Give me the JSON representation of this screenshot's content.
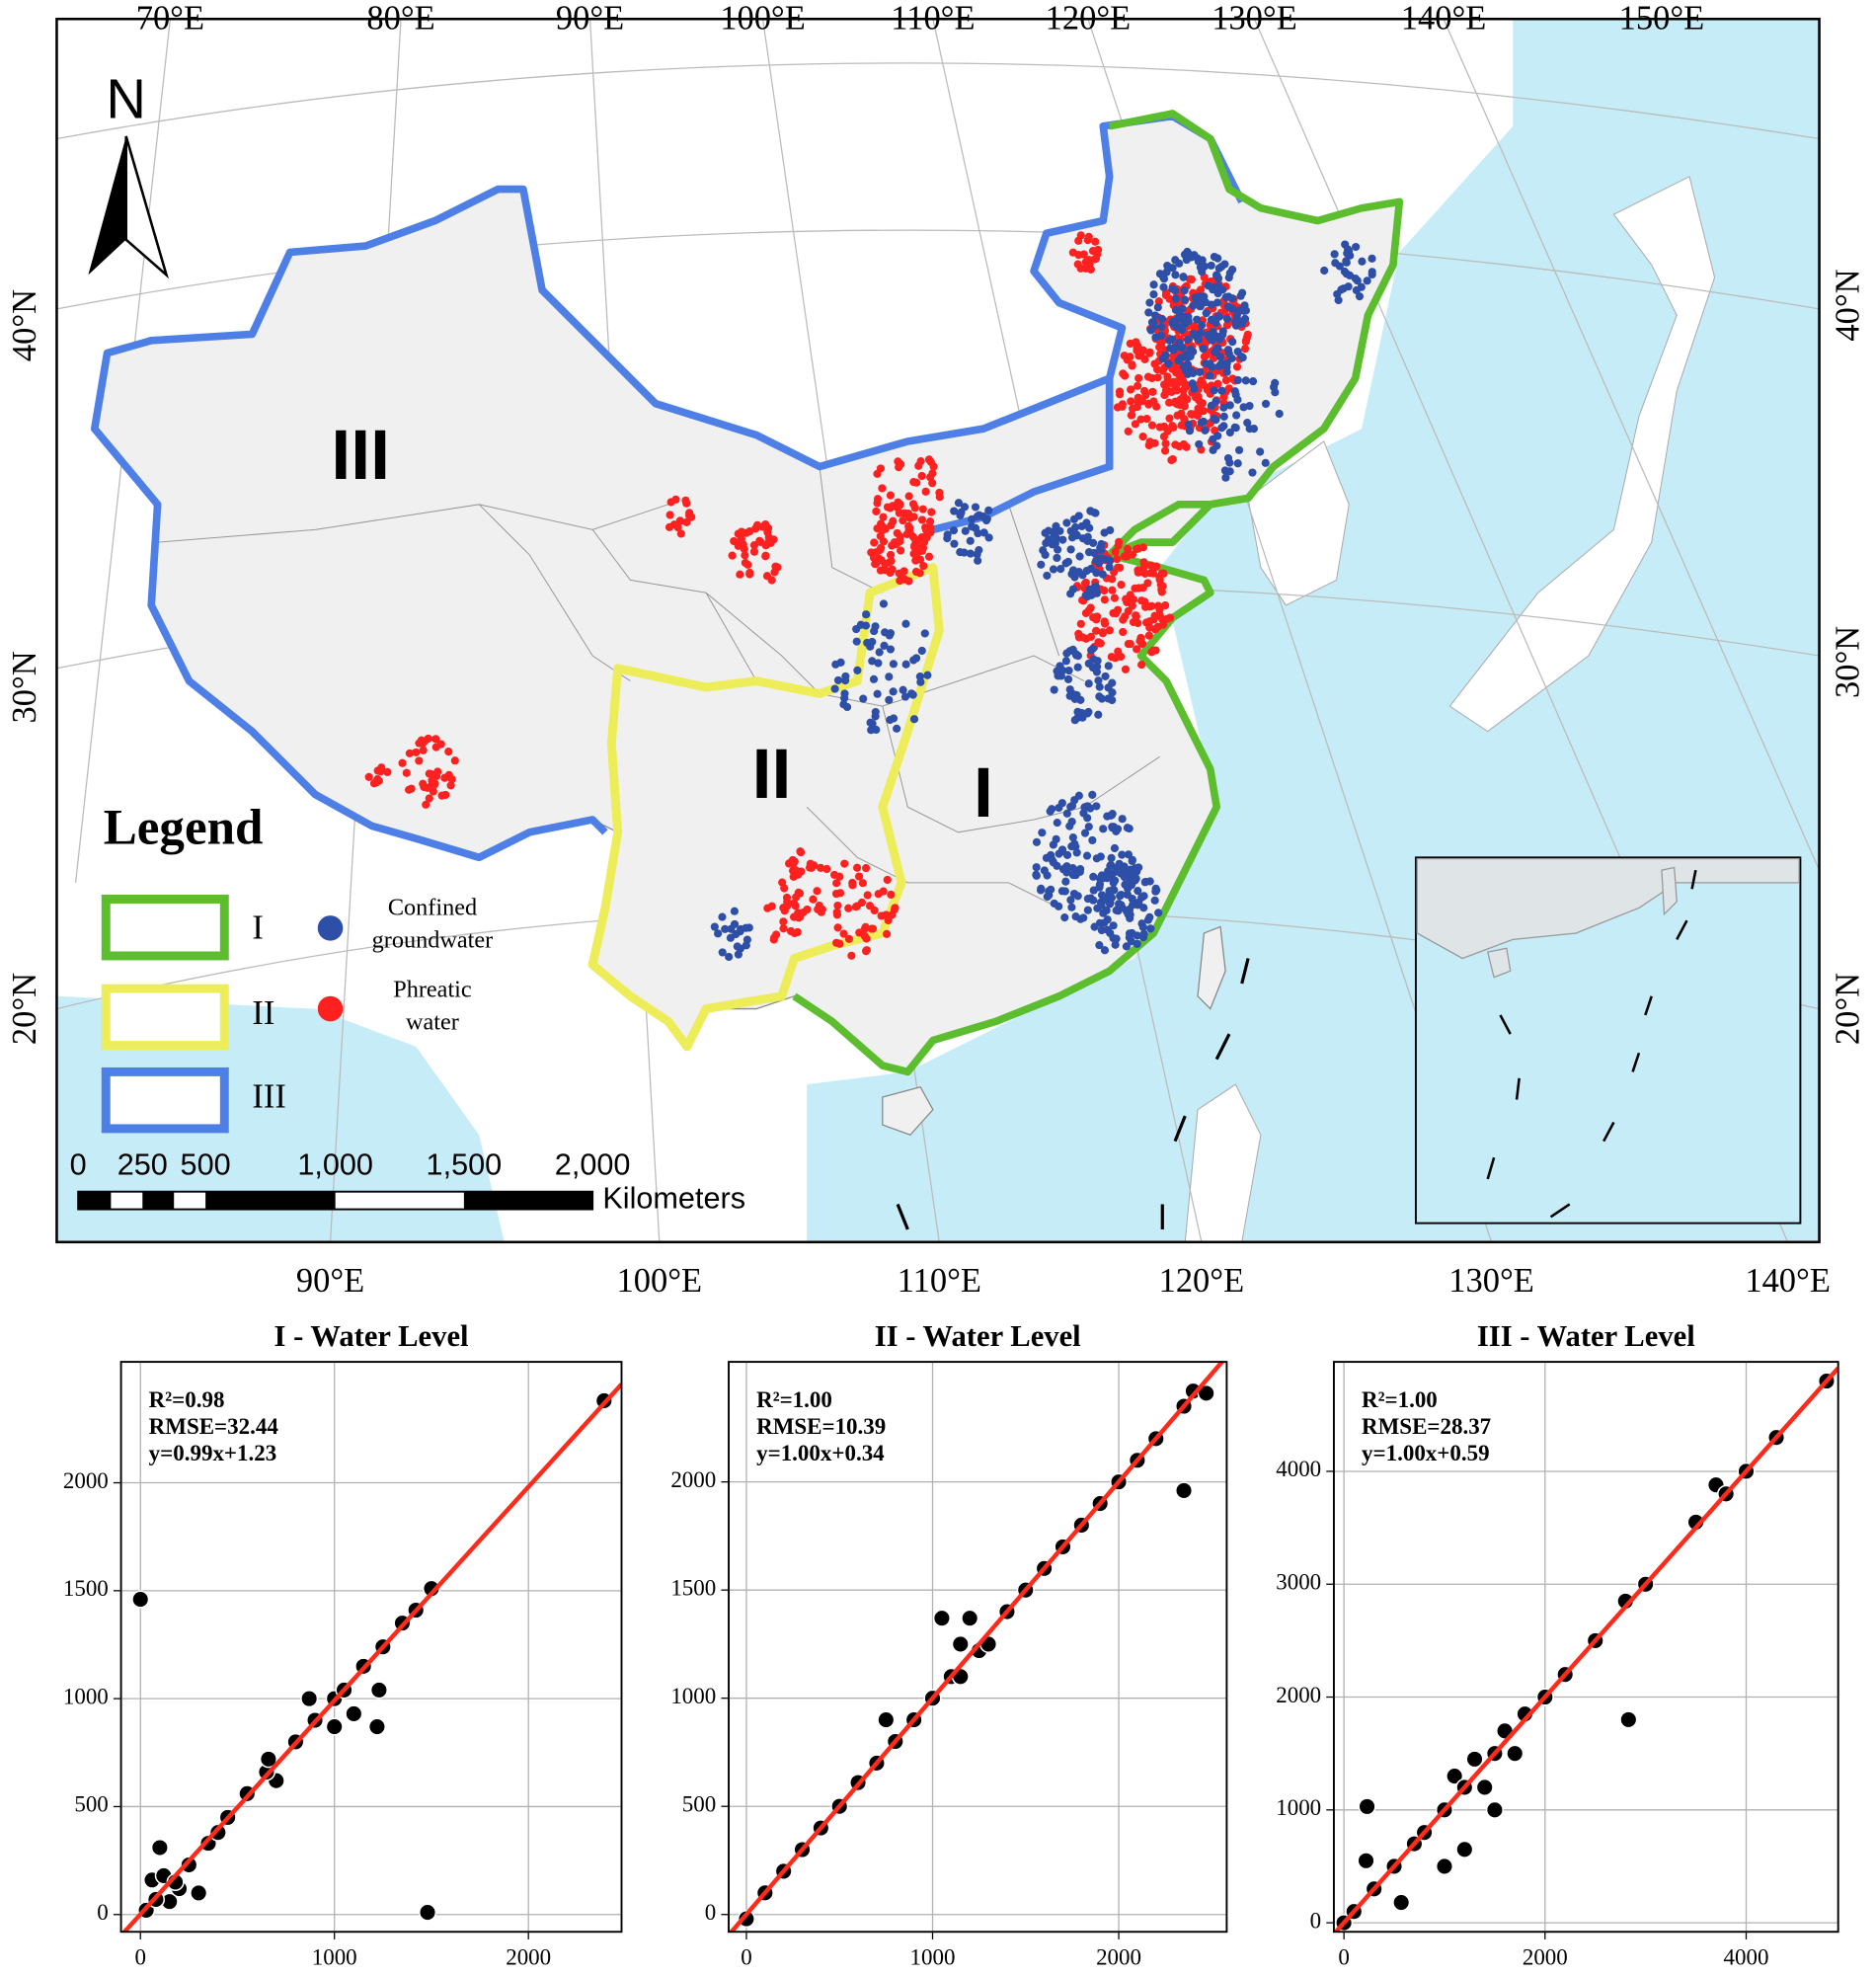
{
  "map": {
    "longitude_labels_top": [
      "70°E",
      "80°E",
      "90°E",
      "100°E",
      "110°E",
      "120°E",
      "130°E",
      "140°E",
      "150°E"
    ],
    "longitude_labels_bottom": [
      "90°E",
      "100°E",
      "110°E",
      "120°E",
      "130°E",
      "140°E"
    ],
    "latitude_labels_left": [
      "40°N",
      "30°N",
      "20°N"
    ],
    "latitude_labels_right": [
      "40°N",
      "30°N",
      "20°N"
    ],
    "north": "N",
    "region_labels": [
      "III",
      "II",
      "I"
    ],
    "legend": {
      "title": "Legend",
      "regions": [
        "I",
        "II",
        "III"
      ],
      "points": [
        [
          "Confined",
          "groundwater"
        ],
        [
          "Phreatic",
          "water"
        ]
      ]
    },
    "scale_bar": {
      "labels": [
        "0",
        "250",
        "500",
        "1,000",
        "1,500",
        "2,000"
      ],
      "unit": "Kilometers"
    }
  },
  "chart_data": [
    {
      "type": "scatter",
      "title": "I - Water Level",
      "annotations": [
        "R²=0.98",
        "RMSE=32.44",
        "y=0.99x+1.23"
      ],
      "x": [
        0,
        1480,
        2390,
        1500,
        1230,
        1220,
        1100,
        1000,
        870,
        700,
        300,
        100,
        60,
        150,
        200,
        250,
        350,
        450,
        550,
        650,
        660,
        800,
        900,
        1000,
        1050,
        1150,
        1250,
        1350,
        1420,
        30,
        80,
        120,
        180,
        400
      ],
      "values": [
        1460,
        10,
        2380,
        1510,
        1040,
        870,
        930,
        870,
        1000,
        620,
        100,
        310,
        160,
        60,
        120,
        230,
        330,
        450,
        560,
        660,
        720,
        800,
        900,
        1000,
        1040,
        1150,
        1240,
        1350,
        1410,
        20,
        70,
        180,
        150,
        380
      ],
      "color": "#000000",
      "fit": {
        "slope": 0.99,
        "intercept": 1.23,
        "color": "#ff2a1a"
      },
      "xlim": [
        -100,
        2480
      ],
      "ylim": [
        -80,
        2560
      ],
      "xticks": [
        0,
        1000,
        2000
      ],
      "yticks": [
        0,
        500,
        1000,
        1500,
        2000
      ],
      "grid": true
    },
    {
      "type": "scatter",
      "title": "II - Water Level",
      "annotations": [
        "R²=1.00",
        "RMSE=10.39",
        "y=1.00x+0.34"
      ],
      "x": [
        0,
        100,
        200,
        300,
        400,
        500,
        600,
        700,
        750,
        800,
        900,
        1000,
        1050,
        1100,
        1150,
        1200,
        1250,
        1300,
        1150,
        1400,
        1500,
        1600,
        1700,
        1800,
        1900,
        2000,
        2100,
        2200,
        2350,
        2350,
        2400,
        2470
      ],
      "values": [
        -20,
        100,
        200,
        300,
        400,
        500,
        610,
        700,
        900,
        800,
        900,
        1000,
        1370,
        1100,
        1250,
        1370,
        1220,
        1250,
        1100,
        1400,
        1500,
        1600,
        1700,
        1800,
        1900,
        2000,
        2100,
        2200,
        1960,
        2350,
        2420,
        2410
      ],
      "color": "#000000",
      "fit": {
        "slope": 1.0,
        "intercept": 0.34,
        "color": "#ff2a1a"
      },
      "xlim": [
        -95,
        2580
      ],
      "ylim": [
        -80,
        2555
      ],
      "xticks": [
        0,
        1000,
        2000
      ],
      "yticks": [
        0,
        500,
        1000,
        1500,
        2000
      ],
      "grid": true
    },
    {
      "type": "scatter",
      "title": "III - Water Level",
      "annotations": [
        "R²=1.00",
        "RMSE=28.37",
        "y=1.00x+0.59"
      ],
      "x": [
        0,
        100,
        230,
        220,
        300,
        570,
        500,
        700,
        800,
        1000,
        1000,
        1100,
        1200,
        1200,
        1300,
        1400,
        1500,
        1500,
        1600,
        1700,
        1800,
        2000,
        2200,
        2500,
        2800,
        2830,
        3000,
        3500,
        3700,
        3800,
        4000,
        4300,
        4800
      ],
      "values": [
        0,
        100,
        1030,
        550,
        300,
        180,
        500,
        700,
        800,
        500,
        1000,
        1300,
        650,
        1200,
        1450,
        1200,
        1000,
        1500,
        1700,
        1500,
        1850,
        2000,
        2200,
        2500,
        2850,
        1800,
        3000,
        3550,
        3880,
        3800,
        4000,
        4300,
        4800
      ],
      "color": "#000000",
      "fit": {
        "slope": 1.0,
        "intercept": 0.59,
        "color": "#ff2a1a"
      },
      "xlim": [
        -100,
        4915
      ],
      "ylim": [
        -80,
        4970
      ],
      "xticks": [
        0,
        2000,
        4000
      ],
      "yticks": [
        0,
        1000,
        2000,
        3000,
        4000
      ],
      "grid": true
    }
  ]
}
